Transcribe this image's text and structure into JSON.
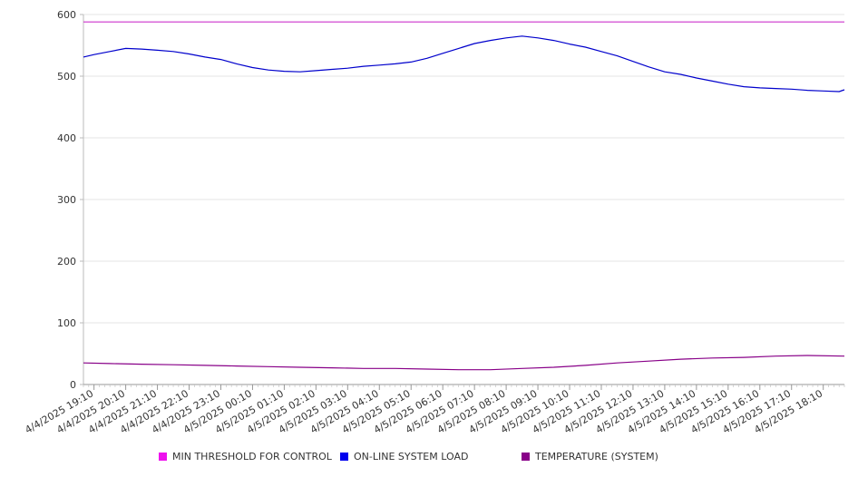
{
  "chart_data": {
    "type": "line",
    "ylim": [
      0,
      600
    ],
    "y_ticks": [
      "0",
      "100",
      "200",
      "300",
      "400",
      "500",
      "600"
    ],
    "x_labels": [
      "4/4/2025 19:10",
      "4/4/2025 20:10",
      "4/4/2025 21:10",
      "4/4/2025 22:10",
      "4/4/2025 23:10",
      "4/5/2025 00:10",
      "4/5/2025 01:10",
      "4/5/2025 02:10",
      "4/5/2025 03:10",
      "4/5/2025 04:10",
      "4/5/2025 05:10",
      "4/5/2025 06:10",
      "4/5/2025 07:10",
      "4/5/2025 08:10",
      "4/5/2025 09:10",
      "4/5/2025 10:10",
      "4/5/2025 11:10",
      "4/5/2025 12:10",
      "4/5/2025 13:10",
      "4/5/2025 14:10",
      "4/5/2025 15:10",
      "4/5/2025 16:10",
      "4/5/2025 17:10",
      "4/5/2025 18:10"
    ],
    "x_range": [
      "4/4/2025 18:50",
      "4/5/2025 18:50"
    ],
    "grid": true,
    "legend_position": "bottom",
    "series": [
      {
        "name": "MIN THRESHOLD FOR CONTROL",
        "color": "#cc33cc",
        "legend_color": "#ee11ee",
        "x": [
          "4/4/2025 18:50",
          "4/5/2025 18:50"
        ],
        "values": [
          588,
          588
        ]
      },
      {
        "name": "ON-LINE SYSTEM LOAD",
        "color": "#0000cc",
        "legend_color": "#0000ee",
        "x": [
          "4/4/2025 18:50",
          "4/4/2025 19:10",
          "4/4/2025 19:40",
          "4/4/2025 20:10",
          "4/4/2025 20:40",
          "4/4/2025 21:10",
          "4/4/2025 21:40",
          "4/4/2025 22:10",
          "4/4/2025 22:40",
          "4/4/2025 23:10",
          "4/4/2025 23:40",
          "4/5/2025 00:10",
          "4/5/2025 00:40",
          "4/5/2025 01:10",
          "4/5/2025 01:40",
          "4/5/2025 02:10",
          "4/5/2025 02:40",
          "4/5/2025 03:10",
          "4/5/2025 03:40",
          "4/5/2025 04:10",
          "4/5/2025 04:40",
          "4/5/2025 05:10",
          "4/5/2025 05:40",
          "4/5/2025 06:10",
          "4/5/2025 06:40",
          "4/5/2025 07:10",
          "4/5/2025 07:40",
          "4/5/2025 08:10",
          "4/5/2025 08:40",
          "4/5/2025 09:10",
          "4/5/2025 09:40",
          "4/5/2025 10:10",
          "4/5/2025 10:40",
          "4/5/2025 11:10",
          "4/5/2025 11:40",
          "4/5/2025 12:10",
          "4/5/2025 12:40",
          "4/5/2025 13:10",
          "4/5/2025 13:40",
          "4/5/2025 14:10",
          "4/5/2025 14:40",
          "4/5/2025 15:10",
          "4/5/2025 15:40",
          "4/5/2025 16:10",
          "4/5/2025 16:40",
          "4/5/2025 17:10",
          "4/5/2025 17:40",
          "4/5/2025 18:10",
          "4/5/2025 18:40",
          "4/5/2025 18:50"
        ],
        "values": [
          531,
          535,
          540,
          545,
          544,
          542,
          540,
          536,
          531,
          527,
          520,
          514,
          510,
          508,
          507,
          509,
          511,
          513,
          516,
          518,
          520,
          523,
          529,
          537,
          545,
          553,
          558,
          562,
          565,
          562,
          558,
          552,
          547,
          540,
          533,
          524,
          515,
          507,
          503,
          497,
          492,
          487,
          483,
          481,
          480,
          479,
          477,
          476,
          475,
          478
        ]
      },
      {
        "name": "TEMPERATURE (SYSTEM)",
        "color": "#880088",
        "legend_color": "#880088",
        "x": [
          "4/4/2025 18:50",
          "4/4/2025 19:40",
          "4/4/2025 20:40",
          "4/4/2025 21:40",
          "4/4/2025 22:40",
          "4/4/2025 23:40",
          "4/5/2025 00:40",
          "4/5/2025 01:40",
          "4/5/2025 02:40",
          "4/5/2025 03:40",
          "4/5/2025 04:40",
          "4/5/2025 05:40",
          "4/5/2025 06:40",
          "4/5/2025 07:40",
          "4/5/2025 08:40",
          "4/5/2025 09:40",
          "4/5/2025 10:40",
          "4/5/2025 11:40",
          "4/5/2025 12:40",
          "4/5/2025 13:40",
          "4/5/2025 14:40",
          "4/5/2025 15:40",
          "4/5/2025 16:40",
          "4/5/2025 17:40",
          "4/5/2025 18:50"
        ],
        "values": [
          35,
          34,
          33,
          32,
          31,
          30,
          29,
          28,
          27,
          26,
          26,
          25,
          24,
          24,
          26,
          28,
          31,
          35,
          38,
          41,
          43,
          44,
          46,
          47,
          46
        ]
      }
    ]
  }
}
